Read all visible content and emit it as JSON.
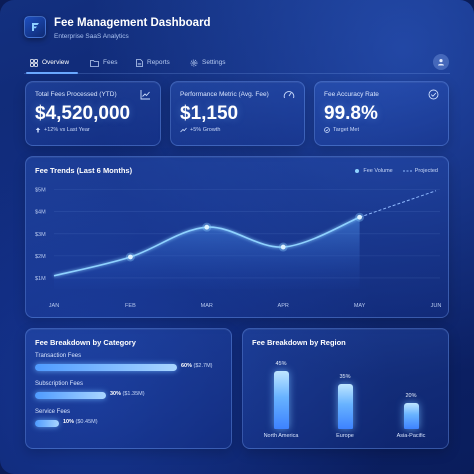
{
  "header": {
    "title": "Fee Management Dashboard",
    "subtitle": "Enterprise SaaS Analytics"
  },
  "nav": {
    "tabs": [
      {
        "label": "Overview",
        "icon": "grid-icon",
        "active": true
      },
      {
        "label": "Fees",
        "icon": "folder-icon",
        "active": false
      },
      {
        "label": "Reports",
        "icon": "document-icon",
        "active": false
      },
      {
        "label": "Settings",
        "icon": "gear-icon",
        "active": false
      }
    ],
    "profile_icon": "user-icon"
  },
  "kpis": [
    {
      "label": "Total Fees Processed (YTD)",
      "value": "$4,520,000",
      "sub": "+12% vs Last Year",
      "icon": "trend-chart-icon",
      "sub_icon": "arrow-up-icon"
    },
    {
      "label": "Performance Metric (Avg. Fee)",
      "value": "$1,150",
      "sub": "+5% Growth",
      "icon": "gauge-icon",
      "sub_icon": "trend-up-icon"
    },
    {
      "label": "Fee Accuracy Rate",
      "value": "99.8%",
      "sub": "Target Met",
      "icon": "check-circle-icon",
      "sub_icon": "check-circle-icon"
    }
  ],
  "chart_data": {
    "type": "line",
    "title": "Fee Trends (Last 6 Months)",
    "categories": [
      "JAN",
      "FEB",
      "MAR",
      "APR",
      "MAY",
      "JUN"
    ],
    "y_ticks": [
      "$1M",
      "$2M",
      "$3M",
      "$4M",
      "$5M"
    ],
    "ylim": [
      0.5,
      5.3
    ],
    "series": [
      {
        "name": "Fee Volume",
        "values": [
          1.1,
          1.95,
          3.3,
          2.4,
          3.75,
          null
        ],
        "color": "#8fd2ff"
      },
      {
        "name": "Projected",
        "values": [
          null,
          null,
          null,
          null,
          3.75,
          4.95
        ],
        "color": "#8fb9ff",
        "dashed": true
      }
    ],
    "legend": "top-right",
    "grid": true
  },
  "category_breakdown": {
    "title": "Fee Breakdown by Category",
    "items": [
      {
        "label": "Transaction Fees",
        "pct_label": "60%",
        "amount": "($2.7M)",
        "fraction": 0.6
      },
      {
        "label": "Subscription Fees",
        "pct_label": "30%",
        "amount": "($1.35M)",
        "fraction": 0.3
      },
      {
        "label": "Service Fees",
        "pct_label": "10%",
        "amount": "($0.45M)",
        "fraction": 0.1
      }
    ]
  },
  "region_breakdown": {
    "title": "Fee Breakdown by Region",
    "items": [
      {
        "label": "North America",
        "pct_label": "45%",
        "value": 45
      },
      {
        "label": "Europe",
        "pct_label": "35%",
        "value": 35
      },
      {
        "label": "Asia-Pacific",
        "pct_label": "20%",
        "value": 20
      }
    ]
  },
  "colors": {
    "accent": "#6aa8ff",
    "background": "#0d2470",
    "line": "#8fd2ff"
  }
}
